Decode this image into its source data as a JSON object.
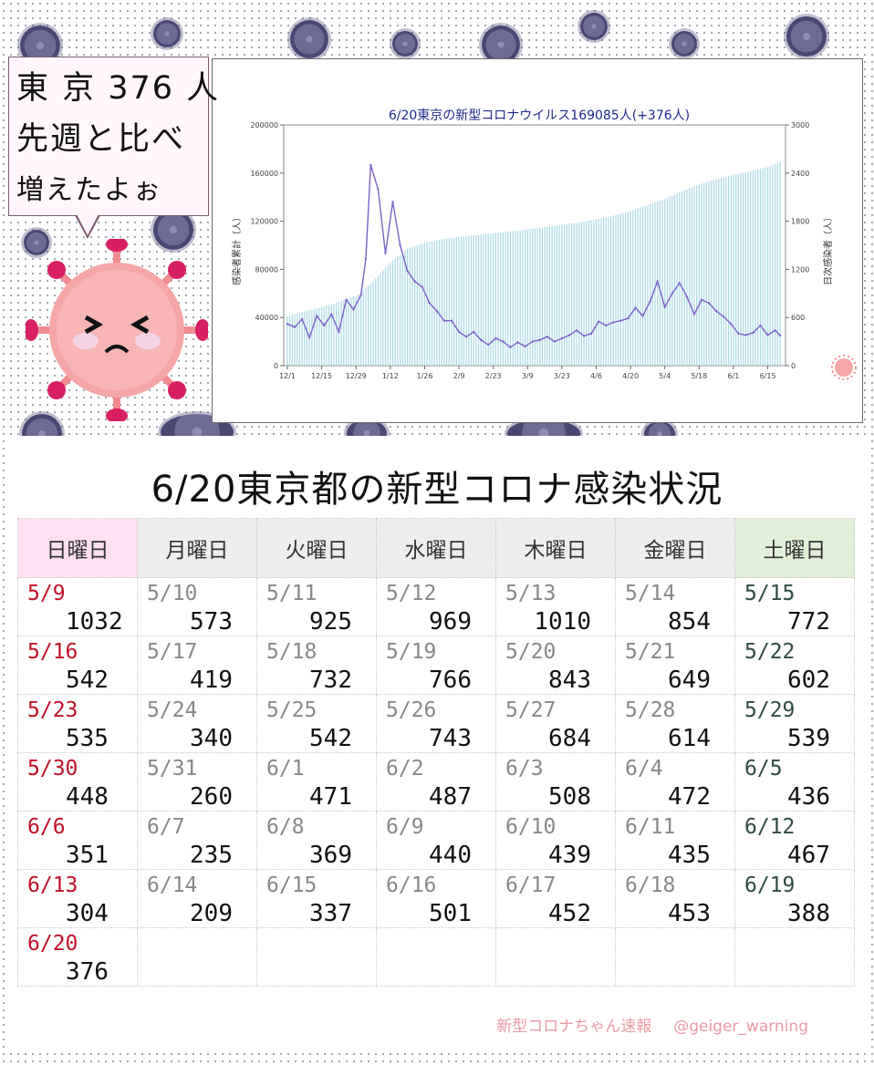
{
  "bubble": {
    "line1": "東 京 376 人",
    "line2": "先週と比べ",
    "line3": "増えたよぉ"
  },
  "chart_data": {
    "type": "bar",
    "title": "6/20東京の新型コロナウイルス169085人(+376人)",
    "ylabel": "感染者累計（人）",
    "y2label": "日次感染者（人）",
    "ylim": [
      0,
      200000
    ],
    "y2lim": [
      0,
      3000
    ],
    "yticks": [
      "0",
      "40000",
      "80000",
      "120000",
      "160000",
      "200000"
    ],
    "y2ticks": [
      "0",
      "600",
      "1200",
      "1800",
      "2400",
      "3000"
    ],
    "xticks": [
      "12/1",
      "12/15",
      "12/29",
      "1/12",
      "1/26",
      "2/9",
      "2/23",
      "3/9",
      "3/23",
      "4/6",
      "4/20",
      "5/4",
      "5/18",
      "6/1",
      "6/15"
    ],
    "series": [
      {
        "name": "",
        "kind": "bar",
        "axis": "left",
        "x": [
          "12/1",
          "12/8",
          "12/15",
          "12/22",
          "12/29",
          "1/5",
          "1/12",
          "1/19",
          "1/26",
          "2/2",
          "2/9",
          "2/16",
          "2/23",
          "3/2",
          "3/9",
          "3/16",
          "3/23",
          "3/30",
          "4/6",
          "4/13",
          "4/20",
          "4/27",
          "5/4",
          "5/11",
          "5/18",
          "5/25",
          "6/1",
          "6/8",
          "6/15",
          "6/20"
        ],
        "values": [
          41000,
          45000,
          48500,
          53000,
          58000,
          70000,
          86000,
          97000,
          102000,
          105000,
          107000,
          108500,
          110000,
          111500,
          113000,
          115000,
          117000,
          119000,
          121500,
          124500,
          128500,
          133500,
          138500,
          145000,
          150500,
          155000,
          158500,
          161500,
          165000,
          169085
        ]
      },
      {
        "name": "",
        "kind": "line",
        "axis": "right",
        "color": "#7b61c9",
        "x": [
          "12/1",
          "12/4",
          "12/7",
          "12/10",
          "12/13",
          "12/16",
          "12/19",
          "12/22",
          "12/25",
          "12/28",
          "12/31",
          "1/2",
          "1/4",
          "1/7",
          "1/10",
          "1/13",
          "1/16",
          "1/19",
          "1/22",
          "1/25",
          "1/28",
          "1/31",
          "2/3",
          "2/6",
          "2/9",
          "2/12",
          "2/15",
          "2/18",
          "2/21",
          "2/24",
          "2/27",
          "3/2",
          "3/5",
          "3/8",
          "3/11",
          "3/14",
          "3/17",
          "3/20",
          "3/23",
          "3/26",
          "3/29",
          "4/1",
          "4/4",
          "4/7",
          "4/10",
          "4/13",
          "4/16",
          "4/19",
          "4/22",
          "4/25",
          "4/28",
          "5/1",
          "5/4",
          "5/7",
          "5/10",
          "5/13",
          "5/16",
          "5/19",
          "5/22",
          "5/25",
          "5/28",
          "5/31",
          "6/3",
          "6/6",
          "6/9",
          "6/12",
          "6/15",
          "6/18",
          "6/20"
        ],
        "values": [
          520,
          480,
          580,
          350,
          620,
          500,
          640,
          420,
          820,
          700,
          880,
          1330,
          2500,
          2200,
          1400,
          2040,
          1500,
          1180,
          1050,
          980,
          780,
          680,
          560,
          560,
          420,
          360,
          420,
          320,
          260,
          340,
          300,
          230,
          290,
          240,
          300,
          320,
          360,
          300,
          340,
          380,
          440,
          370,
          400,
          550,
          500,
          540,
          560,
          590,
          720,
          620,
          800,
          1050,
          730,
          900,
          1030,
          860,
          640,
          820,
          780,
          680,
          610,
          520,
          400,
          380,
          410,
          500,
          380,
          440,
          376
        ]
      }
    ]
  },
  "table": {
    "title": "6/20東京都の新型コロナ感染状況",
    "headers": [
      "日曜日",
      "月曜日",
      "火曜日",
      "水曜日",
      "木曜日",
      "金曜日",
      "土曜日"
    ],
    "rows": [
      [
        {
          "date": "5/9",
          "value": "1032"
        },
        {
          "date": "5/10",
          "value": "573"
        },
        {
          "date": "5/11",
          "value": "925"
        },
        {
          "date": "5/12",
          "value": "969"
        },
        {
          "date": "5/13",
          "value": "1010"
        },
        {
          "date": "5/14",
          "value": "854"
        },
        {
          "date": "5/15",
          "value": "772"
        }
      ],
      [
        {
          "date": "5/16",
          "value": "542"
        },
        {
          "date": "5/17",
          "value": "419"
        },
        {
          "date": "5/18",
          "value": "732"
        },
        {
          "date": "5/19",
          "value": "766"
        },
        {
          "date": "5/20",
          "value": "843"
        },
        {
          "date": "5/21",
          "value": "649"
        },
        {
          "date": "5/22",
          "value": "602"
        }
      ],
      [
        {
          "date": "5/23",
          "value": "535"
        },
        {
          "date": "5/24",
          "value": "340"
        },
        {
          "date": "5/25",
          "value": "542"
        },
        {
          "date": "5/26",
          "value": "743"
        },
        {
          "date": "5/27",
          "value": "684"
        },
        {
          "date": "5/28",
          "value": "614"
        },
        {
          "date": "5/29",
          "value": "539"
        }
      ],
      [
        {
          "date": "5/30",
          "value": "448"
        },
        {
          "date": "5/31",
          "value": "260"
        },
        {
          "date": "6/1",
          "value": "471"
        },
        {
          "date": "6/2",
          "value": "487"
        },
        {
          "date": "6/3",
          "value": "508"
        },
        {
          "date": "6/4",
          "value": "472"
        },
        {
          "date": "6/5",
          "value": "436"
        }
      ],
      [
        {
          "date": "6/6",
          "value": "351"
        },
        {
          "date": "6/7",
          "value": "235"
        },
        {
          "date": "6/8",
          "value": "369"
        },
        {
          "date": "6/9",
          "value": "440"
        },
        {
          "date": "6/10",
          "value": "439"
        },
        {
          "date": "6/11",
          "value": "435"
        },
        {
          "date": "6/12",
          "value": "467"
        }
      ],
      [
        {
          "date": "6/13",
          "value": "304"
        },
        {
          "date": "6/14",
          "value": "209"
        },
        {
          "date": "6/15",
          "value": "337"
        },
        {
          "date": "6/16",
          "value": "501"
        },
        {
          "date": "6/17",
          "value": "452"
        },
        {
          "date": "6/18",
          "value": "453"
        },
        {
          "date": "6/19",
          "value": "388"
        }
      ],
      [
        {
          "date": "6/20",
          "value": "376"
        },
        {
          "date": "",
          "value": ""
        },
        {
          "date": "",
          "value": ""
        },
        {
          "date": "",
          "value": ""
        },
        {
          "date": "",
          "value": ""
        },
        {
          "date": "",
          "value": ""
        },
        {
          "date": "",
          "value": ""
        }
      ]
    ]
  },
  "credit": {
    "name": "新型コロナちゃん速報",
    "handle": "@geiger_warning"
  },
  "colors": {
    "line": "#7b61c9",
    "bars": "#a9d9e2",
    "sunday_header": "#fde0f2",
    "saturday_header": "#e2f0d9",
    "sunday_date": "#c0102a",
    "saturday_date": "#2e4a3c",
    "credit": "#e99aa3"
  }
}
